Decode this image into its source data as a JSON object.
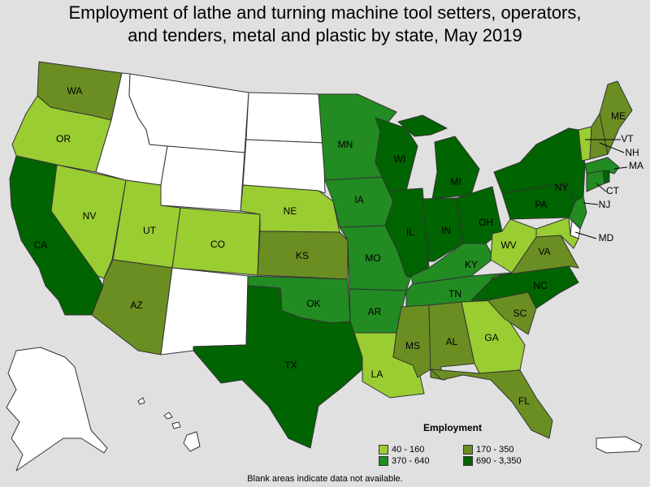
{
  "title": {
    "line1": "Employment of lathe and turning machine tool setters, operators,",
    "line2": "and tenders, metal and plastic by state, May 2019"
  },
  "legend": {
    "title": "Employment",
    "items": [
      {
        "label": "40 - 160",
        "color": "#9acd32"
      },
      {
        "label": "170 - 350",
        "color": "#6b8e23"
      },
      {
        "label": "370 - 640",
        "color": "#228b22"
      },
      {
        "label": "690 - 3,350",
        "color": "#006400"
      }
    ]
  },
  "footnote": "Blank areas indicate data not available.",
  "colors": {
    "c1": "#9acd32",
    "c2": "#6b8e23",
    "c3": "#228b22",
    "c4": "#006400",
    "blank": "#ffffff",
    "background": "#e0e0e0"
  },
  "states": [
    {
      "abbr": "WA",
      "class": "c2",
      "label": "WA"
    },
    {
      "abbr": "OR",
      "class": "c1",
      "label": "OR"
    },
    {
      "abbr": "CA",
      "class": "c4",
      "label": "CA"
    },
    {
      "abbr": "NV",
      "class": "c1",
      "label": "NV"
    },
    {
      "abbr": "ID",
      "class": "blank",
      "label": ""
    },
    {
      "abbr": "MT",
      "class": "blank",
      "label": ""
    },
    {
      "abbr": "WY",
      "class": "blank",
      "label": ""
    },
    {
      "abbr": "UT",
      "class": "c1",
      "label": "UT"
    },
    {
      "abbr": "AZ",
      "class": "c2",
      "label": "AZ"
    },
    {
      "abbr": "CO",
      "class": "c1",
      "label": "CO"
    },
    {
      "abbr": "NM",
      "class": "blank",
      "label": ""
    },
    {
      "abbr": "ND",
      "class": "blank",
      "label": ""
    },
    {
      "abbr": "SD",
      "class": "blank",
      "label": ""
    },
    {
      "abbr": "NE",
      "class": "c1",
      "label": "NE"
    },
    {
      "abbr": "KS",
      "class": "c2",
      "label": "KS"
    },
    {
      "abbr": "OK",
      "class": "c3",
      "label": "OK"
    },
    {
      "abbr": "TX",
      "class": "c4",
      "label": "TX"
    },
    {
      "abbr": "MN",
      "class": "c3",
      "label": "MN"
    },
    {
      "abbr": "IA",
      "class": "c3",
      "label": "IA"
    },
    {
      "abbr": "MO",
      "class": "c3",
      "label": "MO"
    },
    {
      "abbr": "AR",
      "class": "c3",
      "label": "AR"
    },
    {
      "abbr": "LA",
      "class": "c1",
      "label": "LA"
    },
    {
      "abbr": "WI",
      "class": "c4",
      "label": "WI"
    },
    {
      "abbr": "IL",
      "class": "c4",
      "label": "IL"
    },
    {
      "abbr": "MI",
      "class": "c4",
      "label": "MI"
    },
    {
      "abbr": "IN",
      "class": "c4",
      "label": "IN"
    },
    {
      "abbr": "OH",
      "class": "c4",
      "label": "OH"
    },
    {
      "abbr": "KY",
      "class": "c3",
      "label": "KY"
    },
    {
      "abbr": "TN",
      "class": "c3",
      "label": "TN"
    },
    {
      "abbr": "MS",
      "class": "c2",
      "label": "MS"
    },
    {
      "abbr": "AL",
      "class": "c2",
      "label": "AL"
    },
    {
      "abbr": "GA",
      "class": "c1",
      "label": "GA"
    },
    {
      "abbr": "FL",
      "class": "c2",
      "label": "FL"
    },
    {
      "abbr": "SC",
      "class": "c2",
      "label": "SC"
    },
    {
      "abbr": "NC",
      "class": "c4",
      "label": "NC"
    },
    {
      "abbr": "VA",
      "class": "c2",
      "label": "VA"
    },
    {
      "abbr": "WV",
      "class": "c1",
      "label": "WV"
    },
    {
      "abbr": "PA",
      "class": "c4",
      "label": "PA"
    },
    {
      "abbr": "NY",
      "class": "c4",
      "label": "NY"
    },
    {
      "abbr": "VT",
      "class": "c1",
      "label": "VT"
    },
    {
      "abbr": "NH",
      "class": "c2",
      "label": "NH"
    },
    {
      "abbr": "ME",
      "class": "c2",
      "label": "ME"
    },
    {
      "abbr": "MA",
      "class": "c3",
      "label": "MA"
    },
    {
      "abbr": "CT",
      "class": "c3",
      "label": "CT"
    },
    {
      "abbr": "RI",
      "class": "c4",
      "label": ""
    },
    {
      "abbr": "NJ",
      "class": "c3",
      "label": "NJ"
    },
    {
      "abbr": "DE",
      "class": "blank",
      "label": ""
    },
    {
      "abbr": "MD",
      "class": "c1",
      "label": "MD"
    },
    {
      "abbr": "AK",
      "class": "blank",
      "label": ""
    },
    {
      "abbr": "HI",
      "class": "blank",
      "label": ""
    },
    {
      "abbr": "PR",
      "class": "blank",
      "label": ""
    }
  ]
}
